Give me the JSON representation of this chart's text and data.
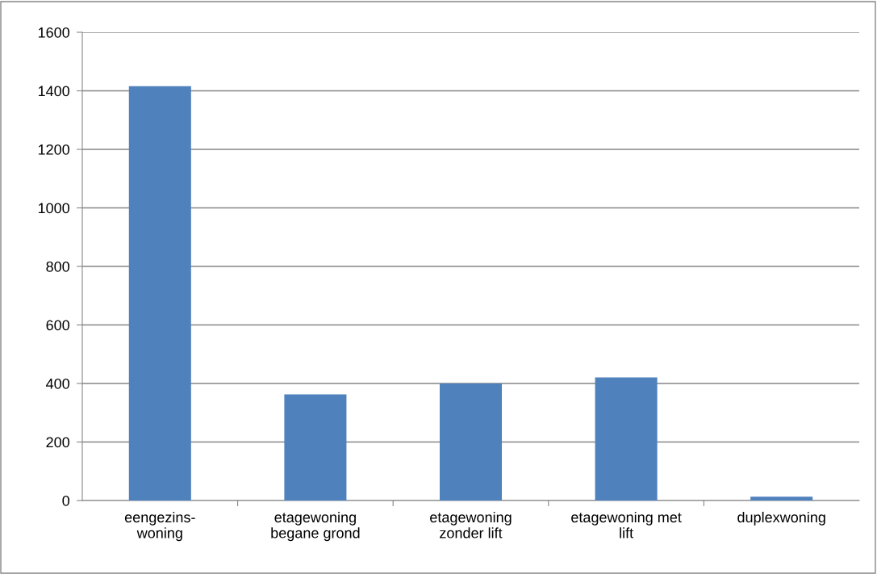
{
  "chart_data": {
    "type": "bar",
    "categories": [
      "eengezins-\nwoning",
      "etagewoning\nbegane grond",
      "etagewoning\nzonder lift",
      "etagewoning met\nlift",
      "duplexwoning"
    ],
    "values": [
      1416,
      363,
      400,
      421,
      13
    ],
    "color": "#4f81bd",
    "ylim": [
      0,
      1600
    ],
    "yticks": [
      0,
      200,
      400,
      600,
      800,
      1000,
      1200,
      1400,
      1600
    ],
    "grid": "y",
    "legend": false
  }
}
